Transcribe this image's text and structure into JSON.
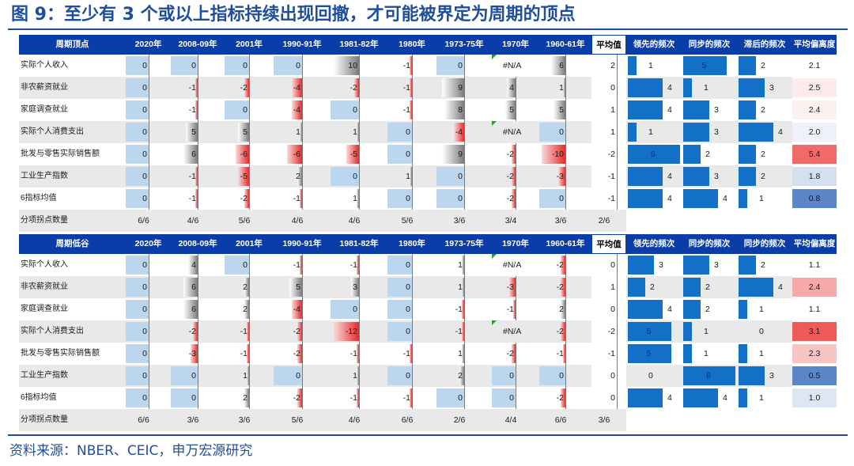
{
  "title": "图 9：至少有 3 个或以上指标持续出现回撤，才可能被界定为周期的顶点",
  "source": "资料来源：NBER、CEIC，申万宏源研究",
  "colors": {
    "header": "#0b3da8",
    "light_bar": "#bcd6ee",
    "dark_bar": "#1270c6",
    "red": "#e42b2b",
    "title": "#1f4e9c"
  },
  "tables": [
    {
      "name": "peak",
      "headers": [
        "周期顶点",
        "2020年",
        "2008-09年",
        "2001年",
        "1990-91年",
        "1981-82年",
        "1980年",
        "1973-75年",
        "1970年",
        "1960-61年",
        "平均值",
        "领先的频次",
        "同步的频次",
        "滞后的频次",
        "平均偏离度"
      ],
      "rows": [
        {
          "label": "实际个人收入",
          "vals": [
            "0",
            "0",
            "0",
            "0",
            "10",
            "-1",
            "0",
            "#N/A",
            "6"
          ],
          "avg": "2",
          "lead": "1",
          "sync": "5",
          "lag": "2",
          "dev": "2.1",
          "devc": "#ffffff"
        },
        {
          "label": "非农薪资就业",
          "vals": [
            "0",
            "-1",
            "-2",
            "-4",
            "-2",
            "-1",
            "9",
            "4",
            "1"
          ],
          "avg": "0",
          "lead": "4",
          "sync": "1",
          "lag": "3",
          "dev": "2.5",
          "devc": "#fdeaea"
        },
        {
          "label": "家庭调查就业",
          "vals": [
            "0",
            "-1",
            "0",
            "-4",
            "0",
            "-1",
            "8",
            "5",
            "5"
          ],
          "avg": "1",
          "lead": "4",
          "sync": "3",
          "lag": "2",
          "dev": "2.4",
          "devc": "#fdf0f0"
        },
        {
          "label": "实际个人消费支出",
          "vals": [
            "0",
            "5",
            "5",
            "1",
            "1",
            "0",
            "-4",
            "#N/A",
            "0"
          ],
          "avg": "1",
          "lead": "1",
          "sync": "3",
          "lag": "4",
          "dev": "2.0",
          "devc": "#eef1f8"
        },
        {
          "label": "批发与零售实际销售额",
          "vals": [
            "0",
            "6",
            "-6",
            "-6",
            "-5",
            "0",
            "9",
            "-2",
            "-10"
          ],
          "avg": "-2",
          "lead": "6",
          "sync": "2",
          "lag": "2",
          "dev": "5.4",
          "devc": "#f06a6a"
        },
        {
          "label": "工业生产指数",
          "vals": [
            "0",
            "-1",
            "-5",
            "2",
            "0",
            "1",
            "0",
            "-2",
            "-3"
          ],
          "avg": "-1",
          "lead": "4",
          "sync": "3",
          "lag": "2",
          "dev": "1.8",
          "devc": "#d4e0f0"
        },
        {
          "label": "6指标均值",
          "vals": [
            "0",
            "-1",
            "-2",
            "-1",
            "1",
            "0",
            "0",
            "-2",
            "0"
          ],
          "avg": "-1",
          "lead": "4",
          "sync": "4",
          "lag": "1",
          "dev": "0.8",
          "devc": "#5b87c9"
        }
      ],
      "counts": {
        "label": "分项拐点数量",
        "vals": [
          "6/6",
          "4/6",
          "5/6",
          "4/6",
          "4/6",
          "5/6",
          "3/6",
          "3/4",
          "3/6",
          "2/6"
        ]
      }
    },
    {
      "name": "trough",
      "headers": [
        "周期低谷",
        "2020年",
        "2008-09年",
        "2001年",
        "1990-91年",
        "1981-82年",
        "1980年",
        "1973-75年",
        "1970年",
        "1960-61年",
        "平均值",
        "领先的频次",
        "同步的频次",
        "同步的频次",
        "平均偏离度"
      ],
      "rows": [
        {
          "label": "实际个人收入",
          "vals": [
            "0",
            "4",
            "0",
            "-1",
            "-1",
            "0",
            "1",
            "#N/A",
            "-2"
          ],
          "avg": "0",
          "lead": "3",
          "sync": "3",
          "lag": "2",
          "dev": "1.1",
          "devc": "#ffffff"
        },
        {
          "label": "非农薪资就业",
          "vals": [
            "0",
            "6",
            "2",
            "5",
            "3",
            "0",
            "1",
            "-3",
            "-2"
          ],
          "avg": "1",
          "lead": "2",
          "sync": "2",
          "lag": "4",
          "dev": "2.4",
          "devc": "#f7a9a9"
        },
        {
          "label": "家庭调查就业",
          "vals": [
            "0",
            "6",
            "2",
            "-4",
            "0",
            "0",
            "-1",
            "-1",
            "2"
          ],
          "avg": "0",
          "lead": "4",
          "sync": "2",
          "lag": "1",
          "dev": "1.1",
          "devc": "#ffffff"
        },
        {
          "label": "实际个人消费支出",
          "vals": [
            "0",
            "-2",
            "-1",
            "-2",
            "-12",
            "0",
            "-1",
            "#N/A",
            "-2"
          ],
          "avg": "-2",
          "lead": "5",
          "sync": "1",
          "lag": "0",
          "dev": "3.1",
          "devc": "#ee5a5a"
        },
        {
          "label": "批发与零售实际销售额",
          "vals": [
            "0",
            "-3",
            "-1",
            "-2",
            "-1",
            "-1",
            "1",
            "-2",
            "-1"
          ],
          "avg": "-1",
          "lead": "5",
          "sync": "1",
          "lag": "1",
          "dev": "2.3",
          "devc": "#f9c4c4"
        },
        {
          "label": "工业生产指数",
          "vals": [
            "0",
            "0",
            "1",
            "0",
            "1",
            "0",
            "2",
            "0",
            "0"
          ],
          "avg": "0",
          "lead": "0",
          "sync": "6",
          "lag": "3",
          "dev": "0.5",
          "devc": "#5b87c9"
        },
        {
          "label": "6指标均值",
          "vals": [
            "0",
            "0",
            "2",
            "-2",
            "-1",
            "-1",
            "0",
            "0",
            "-2"
          ],
          "avg": "0",
          "lead": "4",
          "sync": "4",
          "lag": "1",
          "dev": "1.0",
          "devc": "#dde6f3"
        }
      ],
      "counts": {
        "label": "分项拐点数量",
        "vals": [
          "6/6",
          "3/6",
          "3/6",
          "5/6",
          "4/6",
          "6/6",
          "2/6",
          "4/4",
          "6/6",
          "3/6"
        ]
      }
    }
  ]
}
